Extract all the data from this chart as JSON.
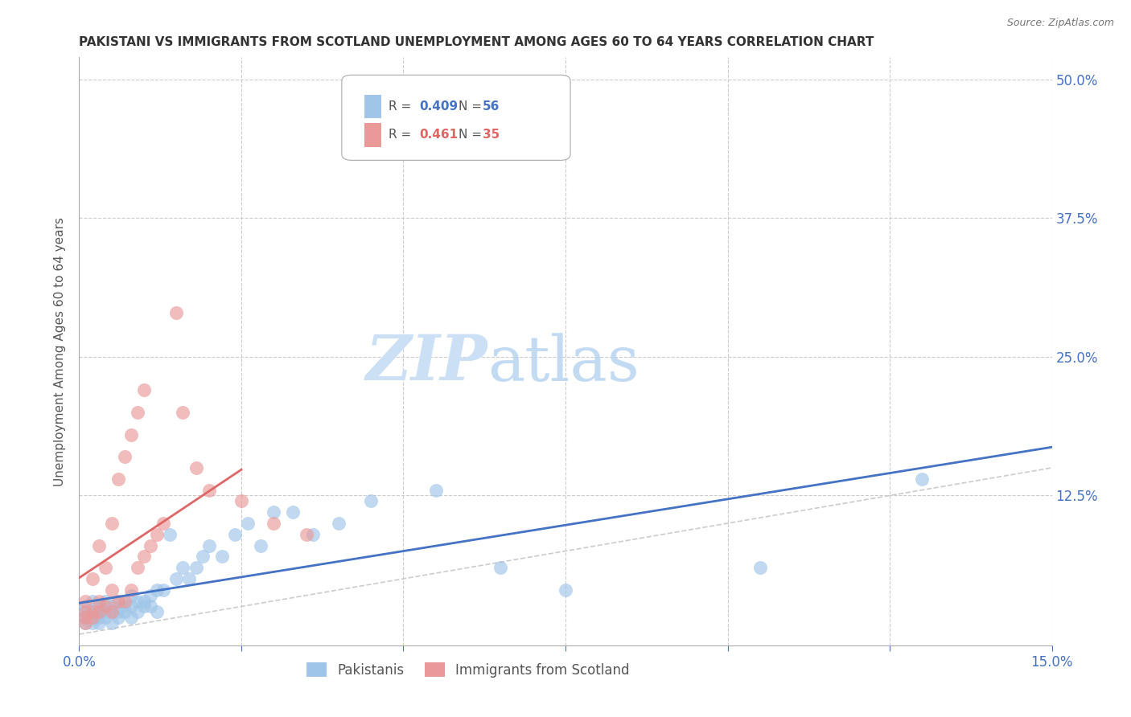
{
  "title": "PAKISTANI VS IMMIGRANTS FROM SCOTLAND UNEMPLOYMENT AMONG AGES 60 TO 64 YEARS CORRELATION CHART",
  "source": "Source: ZipAtlas.com",
  "ylabel": "Unemployment Among Ages 60 to 64 years",
  "xlim": [
    0.0,
    0.15
  ],
  "ylim": [
    -0.01,
    0.52
  ],
  "blue_color": "#9fc5e8",
  "pink_color": "#ea9999",
  "blue_line_color": "#4472c4",
  "pink_line_color": "#e06666",
  "grid_color": "#cccccc",
  "watermark_zip_color": "#cce0f5",
  "watermark_atlas_color": "#b8d4f0",
  "r_blue": 0.409,
  "n_blue": 56,
  "r_pink": 0.461,
  "n_pink": 35,
  "pakistani_x": [
    0.001,
    0.001,
    0.001,
    0.001,
    0.002,
    0.002,
    0.002,
    0.002,
    0.003,
    0.003,
    0.003,
    0.003,
    0.004,
    0.004,
    0.004,
    0.005,
    0.005,
    0.005,
    0.006,
    0.006,
    0.006,
    0.007,
    0.007,
    0.008,
    0.008,
    0.008,
    0.009,
    0.009,
    0.01,
    0.01,
    0.011,
    0.011,
    0.012,
    0.012,
    0.013,
    0.014,
    0.015,
    0.016,
    0.017,
    0.018,
    0.019,
    0.02,
    0.022,
    0.024,
    0.026,
    0.028,
    0.03,
    0.033,
    0.036,
    0.04,
    0.045,
    0.055,
    0.065,
    0.075,
    0.105,
    0.13
  ],
  "pakistani_y": [
    0.01,
    0.015,
    0.02,
    0.025,
    0.01,
    0.015,
    0.02,
    0.03,
    0.01,
    0.015,
    0.02,
    0.025,
    0.015,
    0.02,
    0.03,
    0.01,
    0.02,
    0.025,
    0.015,
    0.02,
    0.03,
    0.02,
    0.025,
    0.015,
    0.025,
    0.035,
    0.02,
    0.03,
    0.025,
    0.03,
    0.025,
    0.035,
    0.02,
    0.04,
    0.04,
    0.09,
    0.05,
    0.06,
    0.05,
    0.06,
    0.07,
    0.08,
    0.07,
    0.09,
    0.1,
    0.08,
    0.11,
    0.11,
    0.09,
    0.1,
    0.12,
    0.13,
    0.06,
    0.04,
    0.06,
    0.14
  ],
  "scotland_x": [
    0.001,
    0.001,
    0.001,
    0.001,
    0.002,
    0.002,
    0.002,
    0.003,
    0.003,
    0.003,
    0.004,
    0.004,
    0.005,
    0.005,
    0.005,
    0.006,
    0.006,
    0.007,
    0.007,
    0.008,
    0.008,
    0.009,
    0.009,
    0.01,
    0.01,
    0.011,
    0.012,
    0.013,
    0.015,
    0.016,
    0.018,
    0.02,
    0.025,
    0.03,
    0.035
  ],
  "scotland_y": [
    0.01,
    0.015,
    0.02,
    0.03,
    0.015,
    0.02,
    0.05,
    0.02,
    0.03,
    0.08,
    0.025,
    0.06,
    0.02,
    0.04,
    0.1,
    0.03,
    0.14,
    0.03,
    0.16,
    0.04,
    0.18,
    0.06,
    0.2,
    0.07,
    0.22,
    0.08,
    0.09,
    0.1,
    0.29,
    0.2,
    0.15,
    0.13,
    0.12,
    0.1,
    0.09
  ]
}
